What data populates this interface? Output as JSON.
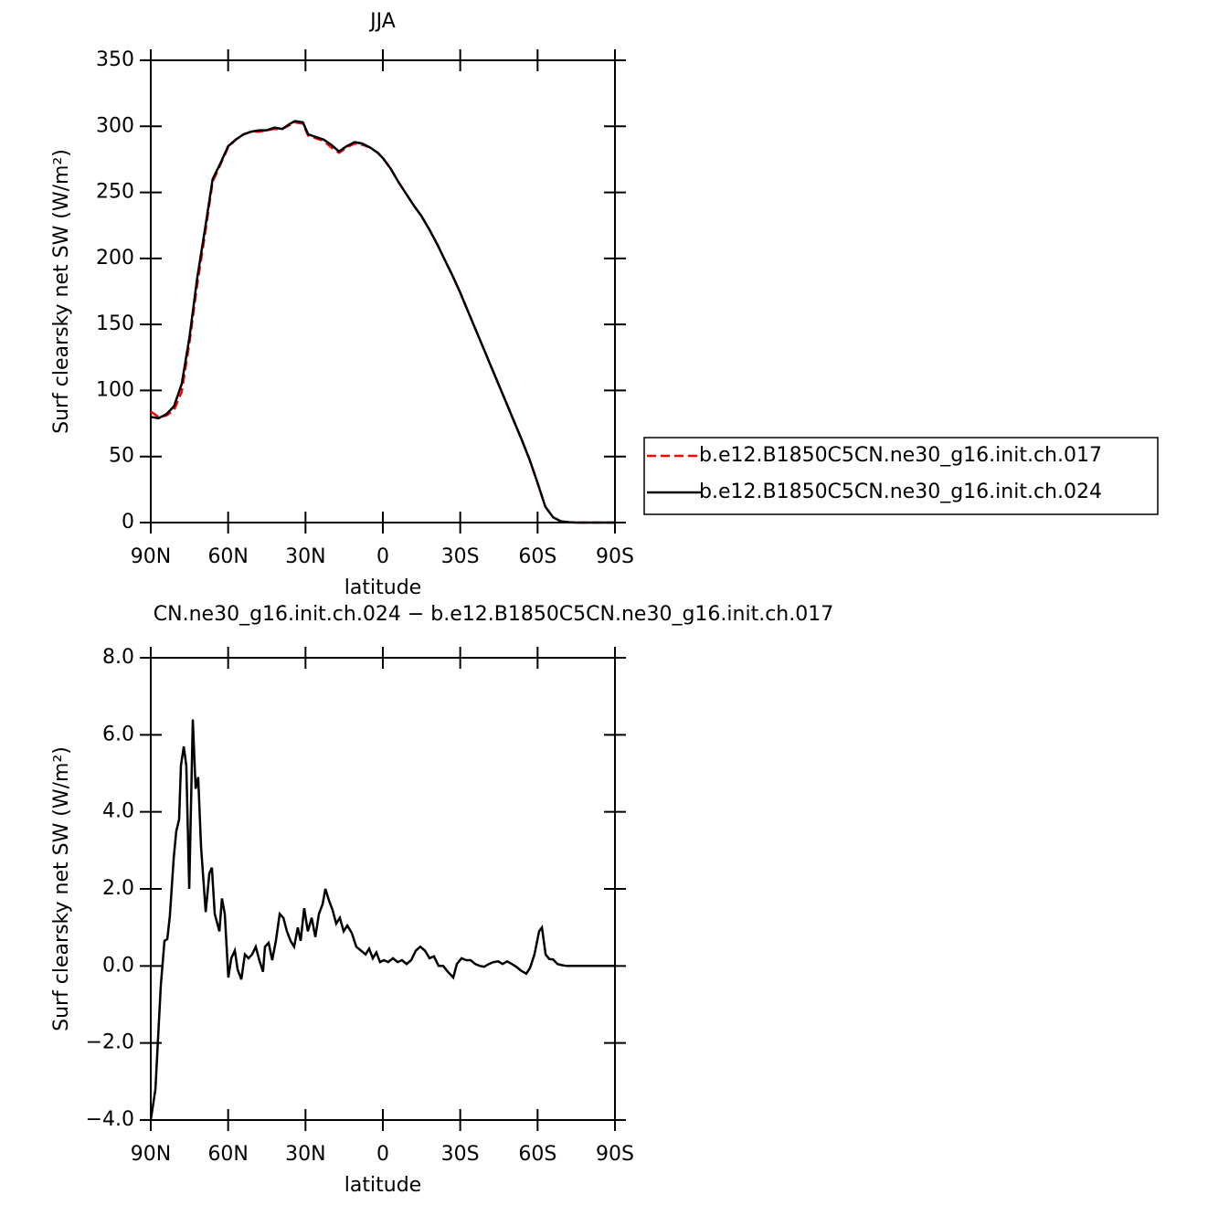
{
  "chart_data": [
    {
      "type": "line",
      "title": "JJA",
      "xlabel": "latitude",
      "ylabel": "Surf clearsky net SW (W/m²)",
      "xlim": [
        90,
        -90
      ],
      "xticks": [
        {
          "value": 90,
          "label": "90N"
        },
        {
          "value": 60,
          "label": "60N"
        },
        {
          "value": 30,
          "label": "30N"
        },
        0,
        {
          "value": -30,
          "label": "30S"
        },
        {
          "value": -60,
          "label": "60S"
        },
        {
          "value": -90,
          "label": "90S"
        }
      ],
      "ylim": [
        0,
        350
      ],
      "yticks": [
        0,
        50,
        100,
        150,
        200,
        250,
        300,
        350
      ],
      "legend": "right",
      "x": [
        90,
        87,
        84,
        81,
        78,
        75,
        72,
        69,
        66,
        63,
        60,
        57,
        54,
        51,
        48,
        45,
        42,
        39,
        36,
        34,
        31,
        29,
        26,
        23,
        20,
        17,
        14,
        11,
        8,
        5,
        2,
        0,
        -3,
        -6,
        -9,
        -12,
        -15,
        -18,
        -21,
        -24,
        -27,
        -30,
        -33,
        -36,
        -39,
        -42,
        -45,
        -48,
        -51,
        -54,
        -57,
        -60,
        -63,
        -66,
        -69,
        -72,
        -75,
        -78,
        -81,
        -84,
        -87,
        -90
      ],
      "series": [
        {
          "name": "b.e12.B1850C5CN.ne30_g16.init.ch.017",
          "color": "#ff0000",
          "dash": "dashed",
          "values": [
            84,
            80,
            81,
            85,
            99,
            136,
            180,
            218,
            258,
            271,
            284,
            290,
            294,
            296,
            296,
            297,
            298,
            298,
            301,
            303,
            302,
            293,
            291,
            289,
            284,
            280,
            284,
            287,
            286,
            284,
            280,
            276,
            268,
            258,
            249,
            240,
            232,
            222,
            211,
            199,
            187,
            174,
            160,
            146,
            132,
            118,
            104,
            90,
            76,
            62,
            47,
            30,
            12,
            4,
            1,
            0.3,
            0,
            0,
            0,
            0,
            0,
            0
          ]
        },
        {
          "name": "b.e12.B1850C5CN.ne30_g16.init.ch.024",
          "color": "#000000",
          "dash": "solid",
          "values": [
            80,
            79,
            82,
            88,
            105,
            140,
            185,
            222,
            260,
            272,
            285,
            290,
            294,
            296,
            297,
            297,
            299,
            298,
            302,
            304,
            303,
            294,
            292,
            290,
            286,
            281,
            285,
            288,
            287,
            284,
            280,
            276,
            268,
            258,
            249,
            240,
            232,
            222,
            211,
            199,
            187,
            174,
            160,
            146,
            132,
            118,
            104,
            90,
            76,
            62,
            47,
            30,
            12,
            4,
            1,
            0.3,
            0,
            0,
            0,
            0,
            0,
            0
          ]
        }
      ]
    },
    {
      "type": "line",
      "title": "CN.ne30_g16.init.ch.024 − b.e12.B1850C5CN.ne30_g16.init.ch.017",
      "xlabel": "latitude",
      "ylabel": "Surf clearsky net SW (W/m²)",
      "xlim": [
        90,
        -90
      ],
      "xticks": [
        {
          "value": 90,
          "label": "90N"
        },
        {
          "value": 60,
          "label": "60N"
        },
        {
          "value": 30,
          "label": "30N"
        },
        0,
        {
          "value": -30,
          "label": "30S"
        },
        {
          "value": -60,
          "label": "60S"
        },
        {
          "value": -90,
          "label": "90S"
        }
      ],
      "ylim": [
        -4,
        8
      ],
      "yticks": [
        {
          "value": -4,
          "label": "−4.0"
        },
        {
          "value": -2,
          "label": "−2.0"
        },
        {
          "value": 0,
          "label": "0.0"
        },
        {
          "value": 2,
          "label": "2.0"
        },
        {
          "value": 4,
          "label": "4.0"
        },
        {
          "value": 6,
          "label": "6.0"
        },
        {
          "value": 8,
          "label": "8.0"
        }
      ],
      "color": "#000000",
      "x": [
        90,
        88.2,
        86.1,
        84.7,
        83.6,
        82.6,
        81.1,
        80.1,
        79,
        78.3,
        77.2,
        76.2,
        75.1,
        73.7,
        72.6,
        71.6,
        70.5,
        68.7,
        67.3,
        66.3,
        65.2,
        63.4,
        62.4,
        61.3,
        59.9,
        58.8,
        57.4,
        56.3,
        54.9,
        53.5,
        52.1,
        50.7,
        49.3,
        47.9,
        46.5,
        45.7,
        44.3,
        42.9,
        41.5,
        40,
        38.6,
        37.2,
        35.8,
        34.4,
        33,
        31.9,
        30.5,
        29.1,
        27.6,
        26.2,
        24.8,
        23.4,
        22.3,
        20.9,
        19.5,
        18.1,
        16.7,
        15.2,
        13.8,
        12,
        10.3,
        8.5,
        6.7,
        5.3,
        3.9,
        2.5,
        1.1,
        -0.4,
        -2.1,
        -3.9,
        -5.7,
        -7.4,
        -9.2,
        -11,
        -12.8,
        -14.5,
        -16.3,
        -18.1,
        -19.8,
        -21.6,
        -23.4,
        -25.2,
        -27.3,
        -28.7,
        -30.5,
        -32.3,
        -34,
        -35.8,
        -37.6,
        -39.3,
        -41.1,
        -42.9,
        -44.7,
        -46.4,
        -48.2,
        -50,
        -51.7,
        -53.5,
        -55.6,
        -57.1,
        -58.8,
        -60.6,
        -61.7,
        -63.1,
        -64.5,
        -66,
        -67.7,
        -69.5,
        -71.2,
        -90
      ],
      "values": [
        -4,
        -3.2,
        -0.5,
        0.65,
        0.7,
        1.3,
        2.8,
        3.5,
        3.8,
        5.2,
        5.7,
        5.2,
        2,
        6.4,
        4.6,
        4.9,
        3.1,
        1.4,
        2.4,
        2.55,
        1.35,
        0.9,
        1.75,
        1.35,
        -0.3,
        0.2,
        0.4,
        -0.1,
        -0.35,
        0.3,
        0.2,
        0.3,
        0.5,
        0.15,
        -0.15,
        0.5,
        0.6,
        0.15,
        0.65,
        1.35,
        1.25,
        0.9,
        0.65,
        0.5,
        1,
        0.65,
        1.5,
        0.9,
        1.25,
        0.75,
        1.35,
        1.6,
        2,
        1.7,
        1.45,
        1.1,
        1.25,
        0.9,
        1.05,
        0.85,
        0.5,
        0.4,
        0.3,
        0.45,
        0.2,
        0.35,
        0.1,
        0.15,
        0.1,
        0.2,
        0.1,
        0.15,
        0.05,
        0.15,
        0.4,
        0.5,
        0.4,
        0.2,
        0.25,
        0,
        0,
        -0.15,
        -0.3,
        0.05,
        0.2,
        0.15,
        0.15,
        0.05,
        0,
        -0.02,
        0.05,
        0.1,
        0.12,
        0.05,
        0.12,
        0.05,
        -0.02,
        -0.12,
        -0.2,
        -0.05,
        0.3,
        0.9,
        1,
        0.3,
        0.18,
        0.17,
        0.05,
        0.02,
        0,
        0
      ]
    }
  ]
}
